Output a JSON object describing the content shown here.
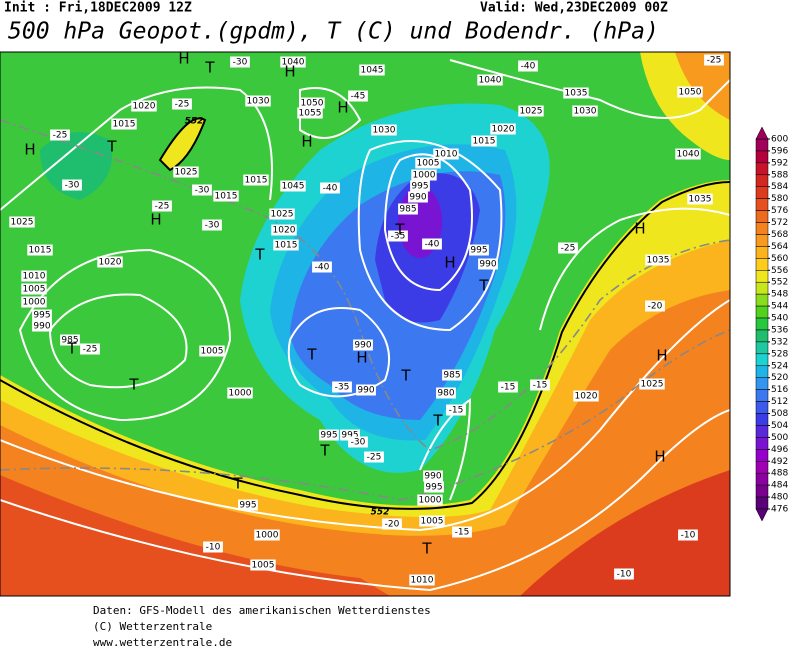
{
  "header": {
    "init": "Init : Fri,18DEC2009 12Z",
    "valid": "Valid: Wed,23DEC2009 00Z",
    "title": "500 hPa Geopot.(gpdm), T (C) und Bodendr. (hPa)"
  },
  "colorbar": {
    "ticks": [
      600,
      596,
      592,
      588,
      584,
      580,
      576,
      572,
      568,
      564,
      560,
      556,
      552,
      548,
      544,
      540,
      536,
      532,
      528,
      524,
      520,
      516,
      512,
      508,
      504,
      500,
      496,
      492,
      488,
      484,
      480,
      476
    ],
    "colors": [
      "#a0005a",
      "#b4003c",
      "#c8142a",
      "#d22820",
      "#dc3c1e",
      "#e6501e",
      "#ee6a1e",
      "#f4821e",
      "#f89a1e",
      "#fcb41e",
      "#ffcc1e",
      "#f0e61e",
      "#c8e61e",
      "#8cdc1e",
      "#50d21e",
      "#28c83c",
      "#1ebe6e",
      "#1ec8a0",
      "#1ed2d2",
      "#1eb4e6",
      "#3296f0",
      "#3c78f0",
      "#3c5aeb",
      "#3c3ce6",
      "#5a28dc",
      "#7814d2",
      "#9600c8",
      "#a000b4",
      "#8c00a0",
      "#78008c",
      "#5a0078"
    ]
  },
  "map_labels": [
    "1045",
    "1040",
    "-30",
    "1030",
    "1050",
    "1055",
    "-45",
    "1040",
    "-40",
    "1035",
    "1030",
    "1025",
    "1020",
    "1015",
    "1030",
    "1010",
    "1005",
    "1000",
    "995",
    "990",
    "985",
    "-35",
    "-40",
    "995",
    "990",
    "1020",
    "1025",
    "1015",
    "1010",
    "1005",
    "1000",
    "995",
    "990",
    "985",
    "-25",
    "1005",
    "1000",
    "990",
    "-35",
    "990",
    "985",
    "980",
    "-15",
    "995",
    "995",
    "-30",
    "-25",
    "990",
    "995",
    "1000",
    "-20",
    "1005",
    "1010",
    "-15",
    "995",
    "1000",
    "-10",
    "1005",
    "-10",
    "-10",
    "-15",
    "-15",
    "1020",
    "1025",
    "-20",
    "-25",
    "1035",
    "1035",
    "1040",
    "1050",
    "-25",
    "-25",
    "1020",
    "1015",
    "1025",
    "-30",
    "1015",
    "-30",
    "-25",
    "-25",
    "-30",
    "1015",
    "1045",
    "1025",
    "1020",
    "1015",
    "-40",
    "-40"
  ],
  "centers": [
    "H",
    "H",
    "H",
    "H",
    "H",
    "H",
    "H",
    "H",
    "H",
    "H",
    "H",
    "T",
    "T",
    "T",
    "T",
    "T",
    "T",
    "T",
    "T",
    "T",
    "T",
    "T",
    "T",
    "T"
  ],
  "contour_labels": [
    "552",
    "552"
  ],
  "footer": [
    "Daten: GFS-Modell des amerikanischen Wetterdienstes",
    "(C) Wetterzentrale",
    "www.wetterzentrale.de"
  ]
}
